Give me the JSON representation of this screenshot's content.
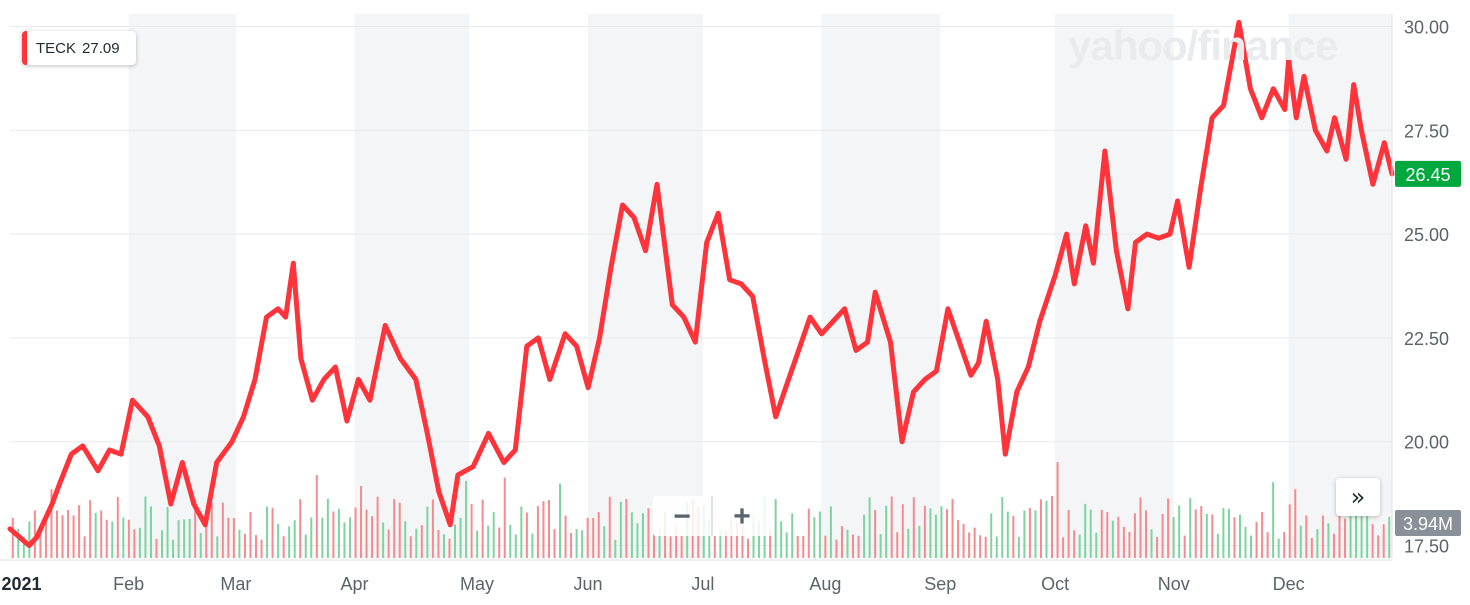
{
  "legend": {
    "symbol": "TECK",
    "value": "27.09"
  },
  "watermark": "yahoo/finance",
  "zoom": {
    "minus_label": "−",
    "plus_label": "+"
  },
  "scroll_label": "»",
  "chart_data": {
    "type": "line",
    "ticker": "TECK",
    "color": "#ff333a",
    "last_price_label": "26.45",
    "last_price_color": "#00a83e",
    "volume_label": "3.94M",
    "ylim": [
      17.2,
      30.3
    ],
    "yticks": [
      17.5,
      20.0,
      22.5,
      25.0,
      27.5,
      30.0
    ],
    "ytick_labels": [
      "17.50",
      "20.00",
      "22.50",
      "25.00",
      "27.50",
      "30.00"
    ],
    "xticks": [
      {
        "label": "2021",
        "date": "2021-01-04",
        "bold": true
      },
      {
        "label": "Feb",
        "date": "2021-02-01"
      },
      {
        "label": "Mar",
        "date": "2021-03-01"
      },
      {
        "label": "Apr",
        "date": "2021-04-01"
      },
      {
        "label": "May",
        "date": "2021-05-03"
      },
      {
        "label": "Jun",
        "date": "2021-06-01"
      },
      {
        "label": "Jul",
        "date": "2021-07-01"
      },
      {
        "label": "Aug",
        "date": "2021-08-02"
      },
      {
        "label": "Sep",
        "date": "2021-09-01"
      },
      {
        "label": "Oct",
        "date": "2021-10-01"
      },
      {
        "label": "Nov",
        "date": "2021-11-01"
      },
      {
        "label": "Dec",
        "date": "2021-12-01"
      }
    ],
    "date_range": [
      "2021-01-01",
      "2021-12-28"
    ],
    "series": [
      {
        "values": [
          [
            "2021-01-01",
            17.9
          ],
          [
            "2021-01-06",
            17.5
          ],
          [
            "2021-01-08",
            17.7
          ],
          [
            "2021-01-12",
            18.5
          ],
          [
            "2021-01-14",
            19.0
          ],
          [
            "2021-01-17",
            19.7
          ],
          [
            "2021-01-20",
            19.9
          ],
          [
            "2021-01-24",
            19.3
          ],
          [
            "2021-01-27",
            19.8
          ],
          [
            "2021-01-30",
            19.7
          ],
          [
            "2021-02-02",
            21.0
          ],
          [
            "2021-02-06",
            20.6
          ],
          [
            "2021-02-09",
            19.9
          ],
          [
            "2021-02-12",
            18.5
          ],
          [
            "2021-02-15",
            19.5
          ],
          [
            "2021-02-18",
            18.5
          ],
          [
            "2021-02-21",
            18.0
          ],
          [
            "2021-02-24",
            19.5
          ],
          [
            "2021-02-28",
            20.0
          ],
          [
            "2021-03-03",
            20.6
          ],
          [
            "2021-03-06",
            21.5
          ],
          [
            "2021-03-09",
            23.0
          ],
          [
            "2021-03-12",
            23.2
          ],
          [
            "2021-03-14",
            23.0
          ],
          [
            "2021-03-16",
            24.3
          ],
          [
            "2021-03-18",
            22.0
          ],
          [
            "2021-03-21",
            21.0
          ],
          [
            "2021-03-24",
            21.5
          ],
          [
            "2021-03-27",
            21.8
          ],
          [
            "2021-03-30",
            20.5
          ],
          [
            "2021-04-02",
            21.5
          ],
          [
            "2021-04-05",
            21.0
          ],
          [
            "2021-04-09",
            22.8
          ],
          [
            "2021-04-13",
            22.0
          ],
          [
            "2021-04-17",
            21.5
          ],
          [
            "2021-04-20",
            20.2
          ],
          [
            "2021-04-23",
            18.8
          ],
          [
            "2021-04-26",
            18.0
          ],
          [
            "2021-04-28",
            19.2
          ],
          [
            "2021-05-02",
            19.4
          ],
          [
            "2021-05-06",
            20.2
          ],
          [
            "2021-05-10",
            19.5
          ],
          [
            "2021-05-13",
            19.8
          ],
          [
            "2021-05-16",
            22.3
          ],
          [
            "2021-05-19",
            22.5
          ],
          [
            "2021-05-22",
            21.5
          ],
          [
            "2021-05-26",
            22.6
          ],
          [
            "2021-05-29",
            22.3
          ],
          [
            "2021-06-01",
            21.3
          ],
          [
            "2021-06-04",
            22.5
          ],
          [
            "2021-06-07",
            24.2
          ],
          [
            "2021-06-10",
            25.7
          ],
          [
            "2021-06-13",
            25.4
          ],
          [
            "2021-06-16",
            24.6
          ],
          [
            "2021-06-19",
            26.2
          ],
          [
            "2021-06-23",
            23.3
          ],
          [
            "2021-06-26",
            23.0
          ],
          [
            "2021-06-29",
            22.4
          ],
          [
            "2021-07-02",
            24.8
          ],
          [
            "2021-07-05",
            25.5
          ],
          [
            "2021-07-08",
            23.9
          ],
          [
            "2021-07-11",
            23.8
          ],
          [
            "2021-07-14",
            23.5
          ],
          [
            "2021-07-17",
            22.0
          ],
          [
            "2021-07-20",
            20.6
          ],
          [
            "2021-07-23",
            21.4
          ],
          [
            "2021-07-26",
            22.2
          ],
          [
            "2021-07-29",
            23.0
          ],
          [
            "2021-08-01",
            22.6
          ],
          [
            "2021-08-04",
            22.9
          ],
          [
            "2021-08-07",
            23.2
          ],
          [
            "2021-08-10",
            22.2
          ],
          [
            "2021-08-13",
            22.4
          ],
          [
            "2021-08-15",
            23.6
          ],
          [
            "2021-08-17",
            23.0
          ],
          [
            "2021-08-19",
            22.4
          ],
          [
            "2021-08-22",
            20.0
          ],
          [
            "2021-08-25",
            21.2
          ],
          [
            "2021-08-28",
            21.5
          ],
          [
            "2021-08-31",
            21.7
          ],
          [
            "2021-09-03",
            23.2
          ],
          [
            "2021-09-06",
            22.4
          ],
          [
            "2021-09-09",
            21.6
          ],
          [
            "2021-09-11",
            21.9
          ],
          [
            "2021-09-13",
            22.9
          ],
          [
            "2021-09-16",
            21.5
          ],
          [
            "2021-09-18",
            19.7
          ],
          [
            "2021-09-21",
            21.2
          ],
          [
            "2021-09-24",
            21.8
          ],
          [
            "2021-09-27",
            22.9
          ],
          [
            "2021-10-01",
            24.0
          ],
          [
            "2021-10-04",
            25.0
          ],
          [
            "2021-10-06",
            23.8
          ],
          [
            "2021-10-09",
            25.2
          ],
          [
            "2021-10-11",
            24.3
          ],
          [
            "2021-10-14",
            27.0
          ],
          [
            "2021-10-17",
            24.6
          ],
          [
            "2021-10-20",
            23.2
          ],
          [
            "2021-10-22",
            24.8
          ],
          [
            "2021-10-25",
            25.0
          ],
          [
            "2021-10-28",
            24.9
          ],
          [
            "2021-10-31",
            25.0
          ],
          [
            "2021-11-02",
            25.8
          ],
          [
            "2021-11-05",
            24.2
          ],
          [
            "2021-11-08",
            26.1
          ],
          [
            "2021-11-11",
            27.8
          ],
          [
            "2021-11-14",
            28.1
          ],
          [
            "2021-11-18",
            30.1
          ],
          [
            "2021-11-21",
            28.5
          ],
          [
            "2021-11-24",
            27.8
          ],
          [
            "2021-11-27",
            28.5
          ],
          [
            "2021-11-30",
            28.0
          ],
          [
            "2021-12-01",
            29.2
          ],
          [
            "2021-12-03",
            27.8
          ],
          [
            "2021-12-05",
            28.8
          ],
          [
            "2021-12-08",
            27.5
          ],
          [
            "2021-12-11",
            27.0
          ],
          [
            "2021-12-13",
            27.8
          ],
          [
            "2021-12-16",
            26.8
          ],
          [
            "2021-12-18",
            28.6
          ],
          [
            "2021-12-20",
            27.5
          ],
          [
            "2021-12-23",
            26.2
          ],
          [
            "2021-12-26",
            27.2
          ],
          [
            "2021-12-28",
            26.45
          ]
        ]
      }
    ],
    "volume_bars": {
      "up_color": "#7fd3a0",
      "down_color": "#f58b8f",
      "count": 250,
      "max_label_value": 3.94
    }
  }
}
